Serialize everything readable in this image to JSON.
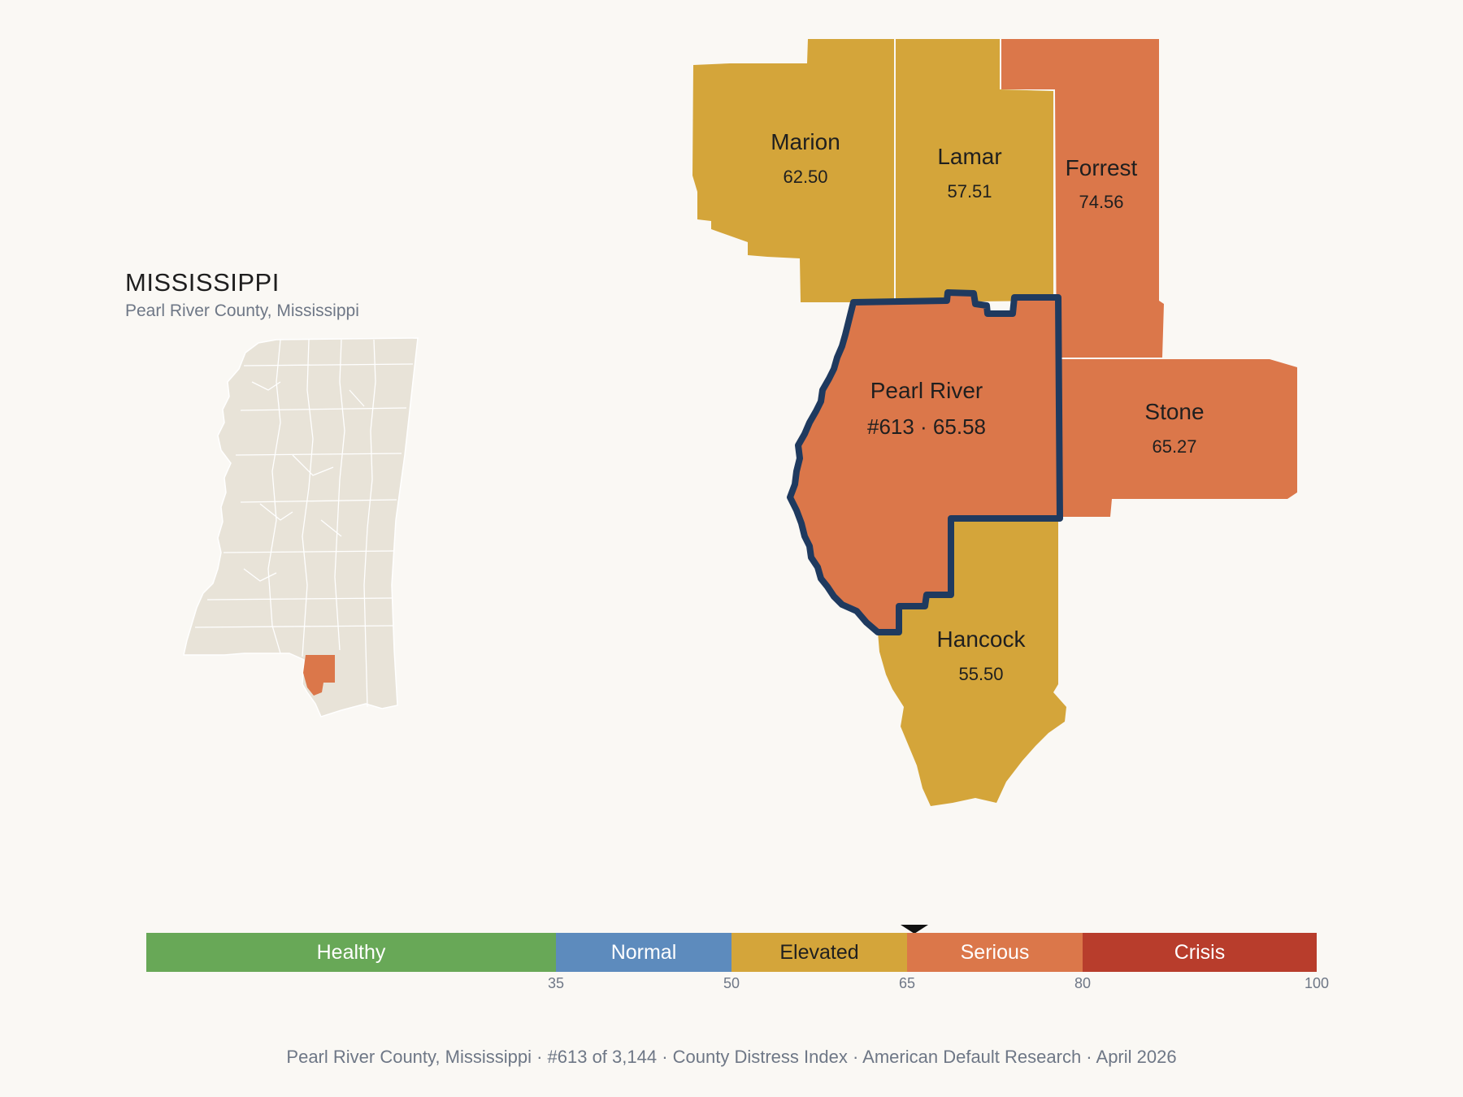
{
  "state": {
    "title": "MISSISSIPPI",
    "subtitle": "Pearl River County, Mississippi"
  },
  "colors": {
    "elevated": "#d4a53a",
    "serious": "#db774a",
    "highlight_outline": "#1f3a5f",
    "state_fill": "#e8e3d8"
  },
  "counties": {
    "marion": {
      "name": "Marion",
      "value": "62.50",
      "category": "Elevated"
    },
    "lamar": {
      "name": "Lamar",
      "value": "57.51",
      "category": "Elevated"
    },
    "forrest": {
      "name": "Forrest",
      "value": "74.56",
      "category": "Serious"
    },
    "pearl_river": {
      "name": "Pearl River",
      "value": "#613 · 65.58",
      "category": "Serious"
    },
    "stone": {
      "name": "Stone",
      "value": "65.27",
      "category": "Serious"
    },
    "hancock": {
      "name": "Hancock",
      "value": "55.50",
      "category": "Elevated"
    }
  },
  "scale": {
    "segments": [
      {
        "label": "Healthy",
        "from": 0,
        "to": 35,
        "color": "#68a857",
        "text_color": "#ffffff"
      },
      {
        "label": "Normal",
        "from": 35,
        "to": 50,
        "color": "#5d8bbd",
        "text_color": "#ffffff"
      },
      {
        "label": "Elevated",
        "from": 50,
        "to": 65,
        "color": "#d4a53a",
        "text_color": "#1f1f1f"
      },
      {
        "label": "Serious",
        "from": 65,
        "to": 80,
        "color": "#db774a",
        "text_color": "#ffffff"
      },
      {
        "label": "Crisis",
        "from": 80,
        "to": 100,
        "color": "#b83d2c",
        "text_color": "#ffffff"
      }
    ],
    "ticks": [
      "35",
      "50",
      "65",
      "80",
      "100"
    ],
    "marker_value": 65.58
  },
  "footer": "Pearl River County, Mississippi  ·  #613 of 3,144  ·  County Distress Index  ·  American Default Research  ·  April 2026"
}
